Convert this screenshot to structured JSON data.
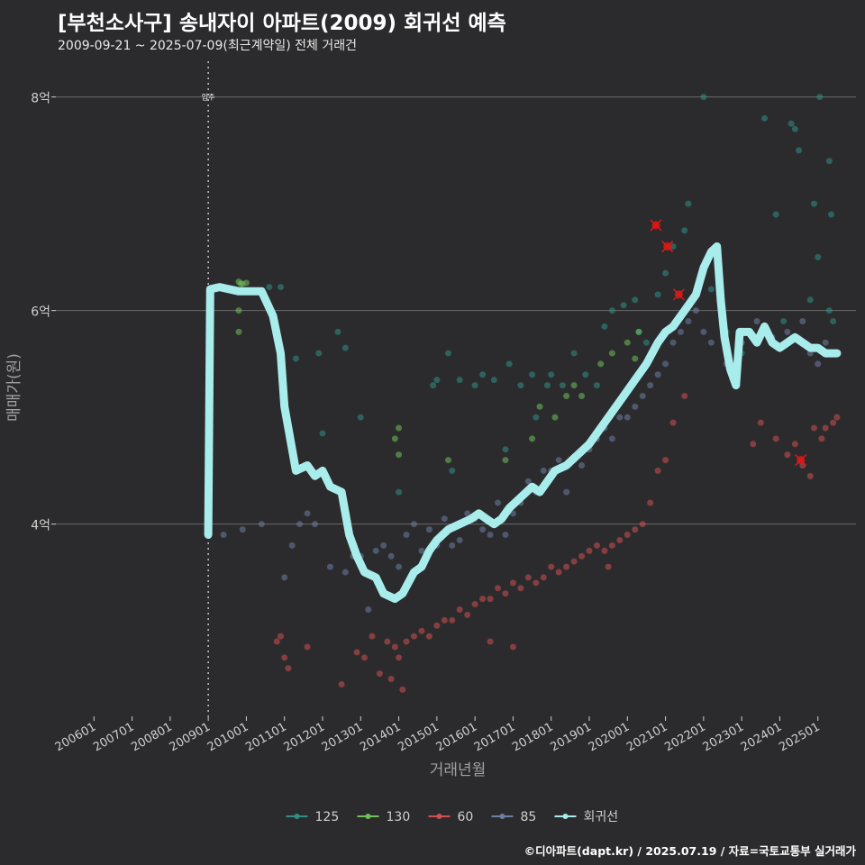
{
  "header": {
    "title": "[부천소사구] 송내자이 아파트(2009) 회귀선 예측",
    "subtitle": "2009-09-21 ~ 2025-07-09(최근계약일) 전체 거래건"
  },
  "footer": {
    "credit": "©디아파트(dapt.kr) / 2025.07.19 / 자료=국토교통부 실거래가"
  },
  "colors": {
    "background": "#2b2b2d",
    "grid": "#6a6a6a",
    "s125": "#2f8f87",
    "s130": "#6fc05a",
    "s60": "#d05050",
    "s85": "#6e7ea0",
    "regression": "#a8ecec",
    "highlight": "#e01818"
  },
  "chart_data": {
    "type": "scatter",
    "title": "[부천소사구] 송내자이 아파트(2009) 회귀선 예측",
    "xlabel": "거래년월",
    "ylabel": "매매가(원)",
    "x_ticks": [
      "200601",
      "200701",
      "200801",
      "200901",
      "201001",
      "201101",
      "201201",
      "201301",
      "201401",
      "201501",
      "201601",
      "201701",
      "201801",
      "201901",
      "202001",
      "202101",
      "202201",
      "202301",
      "202401",
      "202501"
    ],
    "y_ticks": [
      {
        "value": 4,
        "label": "4억"
      },
      {
        "value": 6,
        "label": "6억"
      },
      {
        "value": 8,
        "label": "8억"
      }
    ],
    "ylim": [
      2.2,
      8.25
    ],
    "xlim": [
      2005.0,
      2026.0
    ],
    "annotation": {
      "x": 2009.0,
      "label": "입주"
    },
    "legend": {
      "position": "bottom",
      "items": [
        {
          "name": "125",
          "color": "#2f8f87"
        },
        {
          "name": "130",
          "color": "#6fc05a"
        },
        {
          "name": "60",
          "color": "#d05050"
        },
        {
          "name": "85",
          "color": "#6e7ea0"
        },
        {
          "name": "회귀선",
          "color": "#a8ecec"
        }
      ]
    },
    "series": [
      {
        "name": "125",
        "points": [
          [
            2010.6,
            6.22
          ],
          [
            2010.9,
            6.22
          ],
          [
            2011.3,
            5.55
          ],
          [
            2011.9,
            5.6
          ],
          [
            2012.0,
            4.85
          ],
          [
            2012.4,
            5.8
          ],
          [
            2012.6,
            5.65
          ],
          [
            2013.0,
            5.0
          ],
          [
            2014.0,
            4.3
          ],
          [
            2014.9,
            5.3
          ],
          [
            2015.0,
            5.35
          ],
          [
            2015.3,
            5.6
          ],
          [
            2015.4,
            4.5
          ],
          [
            2015.6,
            5.35
          ],
          [
            2016.0,
            5.3
          ],
          [
            2016.2,
            5.4
          ],
          [
            2016.5,
            5.35
          ],
          [
            2016.8,
            4.7
          ],
          [
            2016.9,
            5.5
          ],
          [
            2017.2,
            5.3
          ],
          [
            2017.5,
            5.4
          ],
          [
            2017.6,
            5.0
          ],
          [
            2017.9,
            5.3
          ],
          [
            2018.0,
            5.4
          ],
          [
            2018.3,
            5.3
          ],
          [
            2018.6,
            5.6
          ],
          [
            2018.9,
            5.4
          ],
          [
            2019.2,
            5.3
          ],
          [
            2019.4,
            5.85
          ],
          [
            2019.6,
            6.0
          ],
          [
            2019.9,
            6.05
          ],
          [
            2020.2,
            6.1
          ],
          [
            2020.3,
            5.8
          ],
          [
            2020.5,
            5.7
          ],
          [
            2020.8,
            6.15
          ],
          [
            2021.0,
            6.35
          ],
          [
            2021.2,
            6.6
          ],
          [
            2021.5,
            6.75
          ],
          [
            2021.6,
            7.0
          ],
          [
            2022.0,
            8.0
          ],
          [
            2022.2,
            6.2
          ],
          [
            2022.6,
            5.8
          ],
          [
            2023.0,
            5.6
          ],
          [
            2023.6,
            7.8
          ],
          [
            2023.9,
            6.9
          ],
          [
            2024.1,
            5.9
          ],
          [
            2024.3,
            7.75
          ],
          [
            2024.4,
            7.7
          ],
          [
            2024.5,
            7.5
          ],
          [
            2024.8,
            6.1
          ],
          [
            2024.9,
            7.0
          ],
          [
            2025.0,
            6.5
          ],
          [
            2025.05,
            8.0
          ],
          [
            2025.3,
            7.4
          ],
          [
            2025.35,
            6.9
          ],
          [
            2025.4,
            5.9
          ],
          [
            2025.3,
            6.0
          ]
        ]
      },
      {
        "name": "130",
        "points": [
          [
            2009.8,
            6.27
          ],
          [
            2009.85,
            6.25
          ],
          [
            2009.9,
            6.25
          ],
          [
            2010.0,
            6.26
          ],
          [
            2009.8,
            6.0
          ],
          [
            2009.8,
            5.8
          ],
          [
            2013.9,
            4.8
          ],
          [
            2014.0,
            4.9
          ],
          [
            2014.0,
            4.65
          ],
          [
            2015.3,
            4.6
          ],
          [
            2016.8,
            4.6
          ],
          [
            2017.5,
            4.8
          ],
          [
            2017.7,
            5.1
          ],
          [
            2018.1,
            5.0
          ],
          [
            2018.4,
            5.2
          ],
          [
            2018.6,
            5.3
          ],
          [
            2018.8,
            5.2
          ],
          [
            2019.3,
            5.5
          ],
          [
            2019.6,
            5.6
          ],
          [
            2020.0,
            5.7
          ],
          [
            2020.2,
            5.55
          ],
          [
            2020.3,
            5.8
          ]
        ]
      },
      {
        "name": "60",
        "points": [
          [
            2010.8,
            2.9
          ],
          [
            2010.9,
            2.95
          ],
          [
            2011.0,
            2.75
          ],
          [
            2011.1,
            2.65
          ],
          [
            2011.6,
            2.85
          ],
          [
            2012.5,
            2.5
          ],
          [
            2012.9,
            2.8
          ],
          [
            2013.1,
            2.75
          ],
          [
            2013.3,
            2.95
          ],
          [
            2013.5,
            2.6
          ],
          [
            2013.7,
            2.9
          ],
          [
            2013.9,
            2.85
          ],
          [
            2014.0,
            2.75
          ],
          [
            2014.2,
            2.9
          ],
          [
            2014.4,
            2.95
          ],
          [
            2014.6,
            3.0
          ],
          [
            2014.8,
            2.95
          ],
          [
            2015.0,
            3.05
          ],
          [
            2015.2,
            3.1
          ],
          [
            2015.4,
            3.1
          ],
          [
            2015.6,
            3.2
          ],
          [
            2015.8,
            3.15
          ],
          [
            2016.0,
            3.25
          ],
          [
            2016.2,
            3.3
          ],
          [
            2016.4,
            3.3
          ],
          [
            2016.6,
            3.4
          ],
          [
            2016.8,
            3.35
          ],
          [
            2017.0,
            3.45
          ],
          [
            2017.2,
            3.4
          ],
          [
            2017.4,
            3.5
          ],
          [
            2017.6,
            3.45
          ],
          [
            2017.8,
            3.5
          ],
          [
            2018.0,
            3.6
          ],
          [
            2018.2,
            3.55
          ],
          [
            2018.4,
            3.6
          ],
          [
            2018.6,
            3.65
          ],
          [
            2018.8,
            3.7
          ],
          [
            2019.0,
            3.75
          ],
          [
            2019.2,
            3.8
          ],
          [
            2019.4,
            3.75
          ],
          [
            2019.6,
            3.8
          ],
          [
            2019.8,
            3.85
          ],
          [
            2020.0,
            3.9
          ],
          [
            2020.2,
            3.95
          ],
          [
            2020.4,
            4.0
          ],
          [
            2020.6,
            4.2
          ],
          [
            2020.8,
            4.5
          ],
          [
            2021.0,
            4.6
          ],
          [
            2021.2,
            4.95
          ],
          [
            2021.5,
            5.2
          ],
          [
            2023.3,
            4.75
          ],
          [
            2023.5,
            4.95
          ],
          [
            2023.9,
            4.8
          ],
          [
            2024.2,
            4.65
          ],
          [
            2024.4,
            4.75
          ],
          [
            2024.6,
            4.55
          ],
          [
            2024.8,
            4.45
          ],
          [
            2024.9,
            4.9
          ],
          [
            2025.1,
            4.8
          ],
          [
            2025.2,
            4.9
          ],
          [
            2025.4,
            4.95
          ],
          [
            2025.5,
            5.0
          ],
          [
            2013.8,
            2.55
          ],
          [
            2014.1,
            2.45
          ],
          [
            2016.4,
            2.9
          ],
          [
            2017.0,
            2.85
          ],
          [
            2019.5,
            3.6
          ]
        ]
      },
      {
        "name": "85",
        "points": [
          [
            2009.4,
            3.9
          ],
          [
            2009.9,
            3.95
          ],
          [
            2010.4,
            4.0
          ],
          [
            2011.0,
            3.5
          ],
          [
            2011.2,
            3.8
          ],
          [
            2011.4,
            4.0
          ],
          [
            2011.6,
            4.1
          ],
          [
            2011.8,
            4.0
          ],
          [
            2012.2,
            3.6
          ],
          [
            2012.6,
            3.55
          ],
          [
            2012.8,
            3.7
          ],
          [
            2013.0,
            3.7
          ],
          [
            2013.2,
            3.2
          ],
          [
            2013.4,
            3.75
          ],
          [
            2013.6,
            3.8
          ],
          [
            2013.8,
            3.7
          ],
          [
            2014.0,
            3.6
          ],
          [
            2014.2,
            3.9
          ],
          [
            2014.4,
            4.0
          ],
          [
            2014.6,
            3.75
          ],
          [
            2014.8,
            3.95
          ],
          [
            2015.0,
            3.8
          ],
          [
            2015.2,
            4.05
          ],
          [
            2015.4,
            3.8
          ],
          [
            2015.6,
            3.85
          ],
          [
            2015.8,
            4.1
          ],
          [
            2016.0,
            4.05
          ],
          [
            2016.2,
            3.95
          ],
          [
            2016.4,
            3.9
          ],
          [
            2016.6,
            4.2
          ],
          [
            2016.8,
            3.9
          ],
          [
            2017.0,
            4.1
          ],
          [
            2017.2,
            4.2
          ],
          [
            2017.4,
            4.4
          ],
          [
            2017.6,
            4.3
          ],
          [
            2017.8,
            4.5
          ],
          [
            2018.0,
            4.5
          ],
          [
            2018.2,
            4.6
          ],
          [
            2018.4,
            4.3
          ],
          [
            2018.6,
            4.6
          ],
          [
            2018.8,
            4.55
          ],
          [
            2019.0,
            4.7
          ],
          [
            2019.2,
            4.8
          ],
          [
            2019.4,
            4.9
          ],
          [
            2019.6,
            4.8
          ],
          [
            2019.8,
            5.0
          ],
          [
            2020.0,
            5.0
          ],
          [
            2020.2,
            5.1
          ],
          [
            2020.4,
            5.2
          ],
          [
            2020.6,
            5.3
          ],
          [
            2020.8,
            5.4
          ],
          [
            2021.0,
            5.5
          ],
          [
            2021.2,
            5.7
          ],
          [
            2021.4,
            5.8
          ],
          [
            2021.6,
            5.9
          ],
          [
            2021.8,
            6.0
          ],
          [
            2022.0,
            5.8
          ],
          [
            2022.2,
            5.7
          ],
          [
            2022.6,
            5.5
          ],
          [
            2023.0,
            5.7
          ],
          [
            2023.4,
            5.9
          ],
          [
            2023.8,
            5.75
          ],
          [
            2024.2,
            5.8
          ],
          [
            2024.6,
            5.9
          ],
          [
            2024.8,
            5.6
          ],
          [
            2025.0,
            5.5
          ],
          [
            2025.2,
            5.7
          ],
          [
            2025.4,
            5.6
          ]
        ]
      }
    ],
    "highlighted": [
      [
        2020.75,
        6.8
      ],
      [
        2021.05,
        6.6
      ],
      [
        2021.35,
        6.15
      ],
      [
        2024.55,
        4.6
      ]
    ],
    "regression": [
      [
        2009.0,
        3.9
      ],
      [
        2009.05,
        6.2
      ],
      [
        2009.3,
        6.22
      ],
      [
        2009.8,
        6.18
      ],
      [
        2010.4,
        6.18
      ],
      [
        2010.7,
        5.95
      ],
      [
        2010.9,
        5.6
      ],
      [
        2011.0,
        5.1
      ],
      [
        2011.2,
        4.7
      ],
      [
        2011.3,
        4.5
      ],
      [
        2011.6,
        4.55
      ],
      [
        2011.8,
        4.45
      ],
      [
        2012.0,
        4.5
      ],
      [
        2012.2,
        4.35
      ],
      [
        2012.5,
        4.3
      ],
      [
        2012.7,
        3.9
      ],
      [
        2012.9,
        3.7
      ],
      [
        2013.1,
        3.55
      ],
      [
        2013.4,
        3.5
      ],
      [
        2013.6,
        3.35
      ],
      [
        2013.9,
        3.3
      ],
      [
        2014.1,
        3.35
      ],
      [
        2014.4,
        3.55
      ],
      [
        2014.6,
        3.6
      ],
      [
        2014.8,
        3.75
      ],
      [
        2015.0,
        3.85
      ],
      [
        2015.3,
        3.95
      ],
      [
        2015.6,
        4.0
      ],
      [
        2015.9,
        4.05
      ],
      [
        2016.1,
        4.1
      ],
      [
        2016.3,
        4.05
      ],
      [
        2016.5,
        4.0
      ],
      [
        2016.7,
        4.05
      ],
      [
        2016.9,
        4.15
      ],
      [
        2017.2,
        4.25
      ],
      [
        2017.5,
        4.35
      ],
      [
        2017.7,
        4.3
      ],
      [
        2017.9,
        4.4
      ],
      [
        2018.1,
        4.5
      ],
      [
        2018.4,
        4.55
      ],
      [
        2018.7,
        4.65
      ],
      [
        2019.0,
        4.75
      ],
      [
        2019.3,
        4.9
      ],
      [
        2019.6,
        5.05
      ],
      [
        2019.9,
        5.2
      ],
      [
        2020.2,
        5.35
      ],
      [
        2020.5,
        5.5
      ],
      [
        2020.8,
        5.7
      ],
      [
        2021.0,
        5.8
      ],
      [
        2021.2,
        5.85
      ],
      [
        2021.5,
        6.0
      ],
      [
        2021.8,
        6.15
      ],
      [
        2022.0,
        6.4
      ],
      [
        2022.2,
        6.55
      ],
      [
        2022.35,
        6.6
      ],
      [
        2022.45,
        6.1
      ],
      [
        2022.55,
        5.75
      ],
      [
        2022.7,
        5.45
      ],
      [
        2022.85,
        5.3
      ],
      [
        2022.95,
        5.8
      ],
      [
        2023.2,
        5.8
      ],
      [
        2023.4,
        5.7
      ],
      [
        2023.6,
        5.85
      ],
      [
        2023.8,
        5.7
      ],
      [
        2024.0,
        5.65
      ],
      [
        2024.2,
        5.7
      ],
      [
        2024.4,
        5.75
      ],
      [
        2024.6,
        5.7
      ],
      [
        2024.8,
        5.65
      ],
      [
        2025.0,
        5.65
      ],
      [
        2025.2,
        5.6
      ],
      [
        2025.5,
        5.6
      ]
    ]
  }
}
